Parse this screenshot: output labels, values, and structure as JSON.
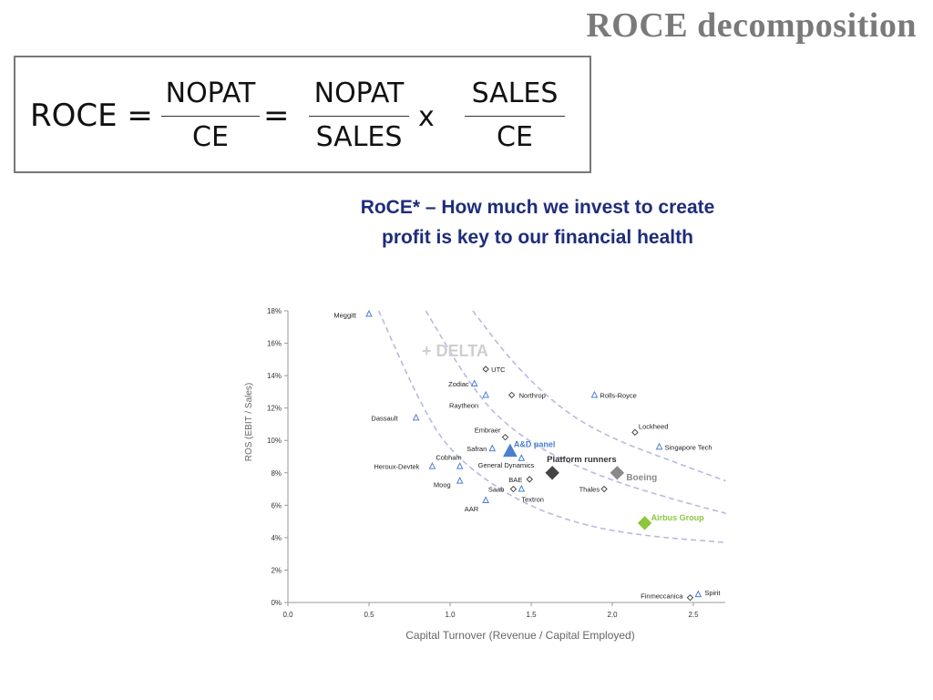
{
  "slide": {
    "title": "ROCE decomposition"
  },
  "formula": {
    "lhs": "ROCE =",
    "frac1": {
      "num": "NOPAT",
      "den": "CE"
    },
    "eq": "=",
    "frac2": {
      "num": "NOPAT",
      "den": "SALES"
    },
    "times": "x",
    "frac3": {
      "num": "SALES",
      "den": "CE"
    }
  },
  "headline": {
    "line1": "RoCE* – How much we invest to create",
    "line2": "profit is key to our financial health"
  },
  "chart_data": {
    "type": "scatter",
    "xlabel": "Capital Turnover (Revenue / Capital Employed)",
    "ylabel": "ROS (EBIT / Sales)",
    "xlim": [
      0,
      2.7
    ],
    "ylim": [
      0,
      18
    ],
    "x_ticks": [
      "0.0",
      "0.5",
      "1.0",
      "1.5",
      "2.0",
      "2.5"
    ],
    "y_ticks": [
      "0%",
      "2%",
      "4%",
      "6%",
      "8%",
      "10%",
      "12%",
      "14%",
      "16%",
      "18%"
    ],
    "colors": {
      "blue": "#4a7fd4",
      "dark": "#444444",
      "grey": "#8a8a8a",
      "green": "#8dc63f",
      "curve": "#b9b9e0",
      "delta": "#cfcfcf"
    },
    "annotation": "+ DELTA",
    "points": [
      {
        "name": "Meggitt",
        "x": 0.5,
        "y": 17.8,
        "marker": "triangle",
        "color": "blue"
      },
      {
        "name": "UTC",
        "x": 1.22,
        "y": 14.4,
        "marker": "diamond",
        "color": "dark"
      },
      {
        "name": "Zodiac",
        "x": 1.15,
        "y": 13.5,
        "marker": "triangle",
        "color": "blue"
      },
      {
        "name": "Raytheon",
        "x": 1.22,
        "y": 12.8,
        "marker": "triangle",
        "color": "blue"
      },
      {
        "name": "Northrop",
        "x": 1.38,
        "y": 12.8,
        "marker": "diamond",
        "color": "dark"
      },
      {
        "name": "Rolls-Royce",
        "x": 1.89,
        "y": 12.8,
        "marker": "triangle",
        "color": "blue"
      },
      {
        "name": "Dassault",
        "x": 0.79,
        "y": 11.4,
        "marker": "triangle",
        "color": "blue"
      },
      {
        "name": "Lockheed",
        "x": 2.14,
        "y": 10.5,
        "marker": "diamond",
        "color": "dark"
      },
      {
        "name": "Embraer",
        "x": 1.34,
        "y": 10.2,
        "marker": "diamond",
        "color": "dark"
      },
      {
        "name": "Safran",
        "x": 1.26,
        "y": 9.5,
        "marker": "triangle",
        "color": "blue"
      },
      {
        "name": "A&D panel",
        "x": 1.37,
        "y": 9.3,
        "marker": "triangle-large",
        "color": "blue"
      },
      {
        "name": "Singapore Tech",
        "x": 2.29,
        "y": 9.6,
        "marker": "triangle",
        "color": "blue"
      },
      {
        "name": "Cobham",
        "x": 1.06,
        "y": 8.4,
        "marker": "triangle",
        "color": "blue"
      },
      {
        "name": "Heroux-Devtek",
        "x": 0.89,
        "y": 8.4,
        "marker": "triangle",
        "color": "blue"
      },
      {
        "name": "General Dynamics",
        "x": 1.44,
        "y": 8.9,
        "marker": "triangle",
        "color": "blue"
      },
      {
        "name": "Platform runners",
        "x": 1.63,
        "y": 8.0,
        "marker": "diamond-large",
        "color": "dark"
      },
      {
        "name": "Boeing",
        "x": 2.03,
        "y": 8.0,
        "marker": "diamond-large",
        "color": "grey"
      },
      {
        "name": "BAE",
        "x": 1.49,
        "y": 7.6,
        "marker": "diamond",
        "color": "dark"
      },
      {
        "name": "Moog",
        "x": 1.06,
        "y": 7.5,
        "marker": "triangle",
        "color": "blue"
      },
      {
        "name": "Saab",
        "x": 1.39,
        "y": 7.0,
        "marker": "diamond",
        "color": "dark"
      },
      {
        "name": "Textron",
        "x": 1.44,
        "y": 7.0,
        "marker": "triangle",
        "color": "blue"
      },
      {
        "name": "Thales",
        "x": 1.95,
        "y": 7.0,
        "marker": "diamond",
        "color": "dark"
      },
      {
        "name": "AAR",
        "x": 1.22,
        "y": 6.3,
        "marker": "triangle",
        "color": "blue"
      },
      {
        "name": "Airbus Group",
        "x": 2.2,
        "y": 4.9,
        "marker": "diamond-large",
        "color": "green"
      },
      {
        "name": "Finmeccanica",
        "x": 2.48,
        "y": 0.3,
        "marker": "diamond",
        "color": "dark"
      },
      {
        "name": "Spirit",
        "x": 2.53,
        "y": 0.5,
        "marker": "triangle",
        "color": "blue"
      }
    ],
    "curves": [
      {
        "points": [
          [
            0.56,
            18
          ],
          [
            0.8,
            12.6
          ],
          [
            1.0,
            9.2
          ],
          [
            1.4,
            6.3
          ],
          [
            1.8,
            4.8
          ],
          [
            2.2,
            4.1
          ],
          [
            2.7,
            3.7
          ]
        ]
      },
      {
        "points": [
          [
            0.85,
            18
          ],
          [
            1.1,
            13.8
          ],
          [
            1.3,
            11.3
          ],
          [
            1.6,
            9.2
          ],
          [
            2.0,
            7.5
          ],
          [
            2.4,
            6.3
          ],
          [
            2.7,
            5.5
          ]
        ]
      },
      {
        "points": [
          [
            1.14,
            18
          ],
          [
            1.4,
            14.6
          ],
          [
            1.7,
            11.8
          ],
          [
            2.0,
            10.1
          ],
          [
            2.4,
            8.6
          ],
          [
            2.7,
            7.5
          ]
        ]
      }
    ]
  }
}
